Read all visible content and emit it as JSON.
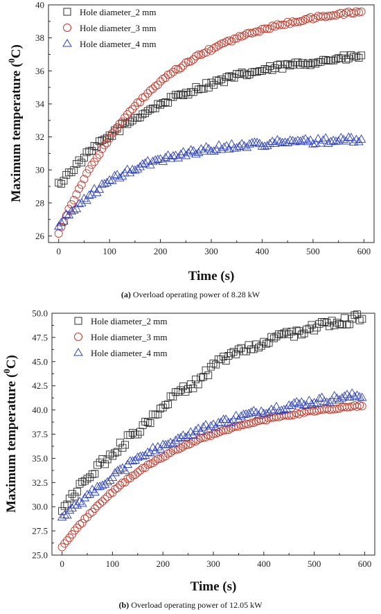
{
  "chart_data": [
    {
      "type": "scatter",
      "panel": "a",
      "caption_label": "(a)",
      "caption_text": "Overload operating power of 8.28 kW",
      "xlabel": "Time (s)",
      "ylabel_main": "Maximum temperature (",
      "ylabel_sup": "0",
      "ylabel_end": "C)",
      "xlim": [
        -20,
        620
      ],
      "ylim": [
        25.6,
        40
      ],
      "xticks": [
        0,
        100,
        200,
        300,
        400,
        500,
        600
      ],
      "yticks": [
        26,
        28,
        30,
        32,
        34,
        36,
        38,
        40
      ],
      "ytick_labels": [
        "26",
        "28",
        "30",
        "32",
        "34",
        "36",
        "38",
        "40"
      ],
      "legend_position": "top-left",
      "series": [
        {
          "name": "Hole diameter_2 mm",
          "marker": "square",
          "color": "#2b2b2b",
          "t0": 29.1,
          "tinf": 37.5,
          "tau": 230,
          "noise": 0.18,
          "wobble_amp": 0,
          "wobble_center": 0,
          "wobble_width": 1
        },
        {
          "name": "Hole diameter_3 mm",
          "marker": "circle",
          "color": "#c0392b",
          "t0": 26.2,
          "tinf": 40.2,
          "tau": 190,
          "noise": 0.08,
          "wobble_amp": 0,
          "wobble_center": 0,
          "wobble_width": 1
        },
        {
          "name": "Hole diameter_4 mm",
          "marker": "triangle",
          "color": "#2a3fbf",
          "t0": 26.6,
          "tinf": 31.9,
          "tau": 140,
          "noise": 0.18,
          "wobble_amp": 0,
          "wobble_center": 0,
          "wobble_width": 1
        }
      ]
    },
    {
      "type": "scatter",
      "panel": "b",
      "caption_label": "(b)",
      "caption_text": "Overload operating power of 12.05 kW",
      "xlabel": "Time (s)",
      "ylabel_main": "Maximum temperature (",
      "ylabel_sup": "0",
      "ylabel_end": "C)",
      "xlim": [
        -20,
        620
      ],
      "ylim": [
        25,
        50
      ],
      "xticks": [
        0,
        100,
        200,
        300,
        400,
        500,
        600
      ],
      "yticks": [
        25,
        27.5,
        30,
        32.5,
        35,
        37.5,
        40,
        42.5,
        45,
        47.5,
        50
      ],
      "ytick_labels": [
        "25.0",
        "27.5",
        "30.0",
        "32.5",
        "35.0",
        "37.5",
        "40.0",
        "42.5",
        "45.0",
        "47.5",
        "50.0"
      ],
      "legend_position": "top-left",
      "series": [
        {
          "name": "Hole diameter_2 mm",
          "marker": "square",
          "color": "#2b2b2b",
          "t0": 29.8,
          "tinf": 50.5,
          "tau": 300,
          "noise": 0.45,
          "wobble_amp": 2.0,
          "wobble_center": 170,
          "wobble_width": 60
        },
        {
          "name": "Hole diameter_3 mm",
          "marker": "circle",
          "color": "#c0392b",
          "t0": 25.8,
          "tinf": 41.5,
          "tau": 220,
          "noise": 0.1,
          "wobble_amp": 0,
          "wobble_center": 0,
          "wobble_width": 1
        },
        {
          "name": "Hole diameter_4 mm",
          "marker": "triangle",
          "color": "#2a3fbf",
          "t0": 28.6,
          "tinf": 43.0,
          "tau": 260,
          "noise": 0.35,
          "wobble_amp": 0,
          "wobble_center": 0,
          "wobble_width": 1
        }
      ]
    }
  ]
}
